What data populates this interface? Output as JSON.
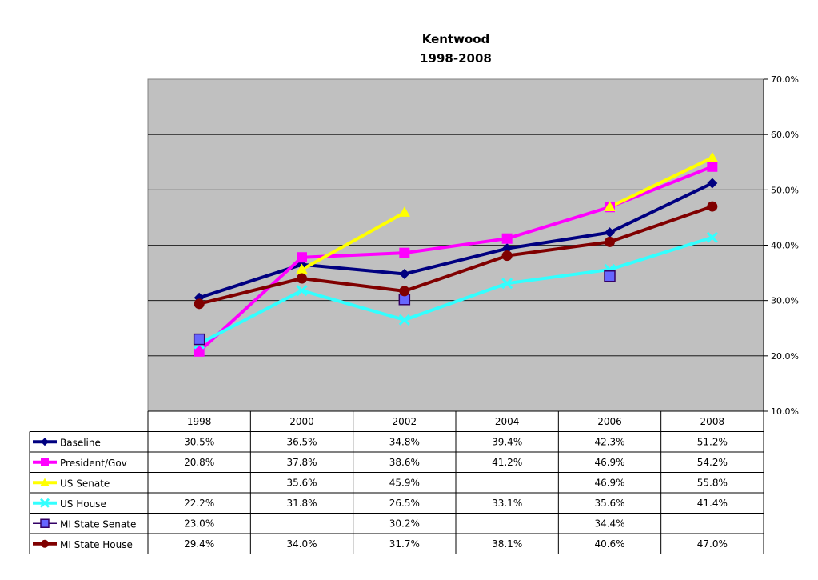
{
  "chart_data": {
    "type": "line",
    "title": "Kentwood",
    "subtitle": "1998-2008",
    "xlabel": "",
    "ylabel": "",
    "categories": [
      "1998",
      "2000",
      "2002",
      "2004",
      "2006",
      "2008"
    ],
    "y_ticks": [
      "10.0%",
      "20.0%",
      "30.0%",
      "40.0%",
      "50.0%",
      "60.0%",
      "70.0%"
    ],
    "ylim": [
      10,
      70
    ],
    "y_axis_side": "right",
    "grid": true,
    "legend": "data-table-below",
    "series": [
      {
        "name": "Baseline",
        "color": "#000080",
        "marker": "diamond",
        "values": [
          30.5,
          36.5,
          34.8,
          39.4,
          42.3,
          51.2
        ],
        "labels": [
          "30.5%",
          "36.5%",
          "34.8%",
          "39.4%",
          "42.3%",
          "51.2%"
        ]
      },
      {
        "name": "President/Gov",
        "color": "#FF00FF",
        "marker": "square",
        "values": [
          20.8,
          37.8,
          38.6,
          41.2,
          46.9,
          54.2
        ],
        "labels": [
          "20.8%",
          "37.8%",
          "38.6%",
          "41.2%",
          "46.9%",
          "54.2%"
        ]
      },
      {
        "name": "US Senate",
        "color": "#FFFF00",
        "marker": "triangle",
        "values": [
          null,
          35.6,
          45.9,
          null,
          46.9,
          55.8
        ],
        "labels": [
          "",
          "35.6%",
          "45.9%",
          "",
          "46.9%",
          "55.8%"
        ]
      },
      {
        "name": "US House",
        "color": "#33FFFF",
        "marker": "x",
        "values": [
          22.2,
          31.8,
          26.5,
          33.1,
          35.6,
          41.4
        ],
        "labels": [
          "22.2%",
          "31.8%",
          "26.5%",
          "33.1%",
          "35.6%",
          "41.4%"
        ]
      },
      {
        "name": "MI State Senate",
        "color": "#6666FF",
        "marker": "square-outlined",
        "values": [
          23.0,
          null,
          30.2,
          null,
          34.4,
          null
        ],
        "labels": [
          "23.0%",
          "",
          "30.2%",
          "",
          "34.4%",
          ""
        ]
      },
      {
        "name": "MI State House",
        "color": "#800000",
        "marker": "circle",
        "values": [
          29.4,
          34.0,
          31.7,
          38.1,
          40.6,
          47.0
        ],
        "labels": [
          "29.4%",
          "34.0%",
          "31.7%",
          "38.1%",
          "40.6%",
          "47.0%"
        ]
      }
    ]
  }
}
